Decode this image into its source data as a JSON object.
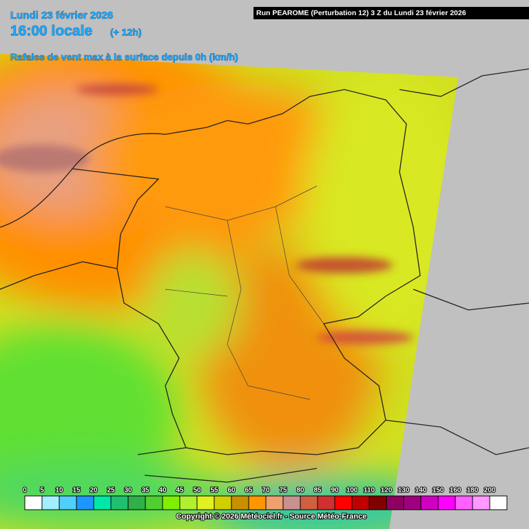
{
  "header": {
    "date": "Lundi 23 février 2026",
    "time": "16:00 locale",
    "lead": "(+ 12h)",
    "parameter": "Rafales de vent max à la surface depuis 0h (km/h)",
    "run": "Run PEAROME (Perturbation 12) 3 Z du Lundi 23 février 2026"
  },
  "legend": {
    "ticks": [
      0,
      5,
      10,
      15,
      20,
      25,
      30,
      35,
      40,
      45,
      50,
      55,
      60,
      65,
      70,
      75,
      80,
      85,
      90,
      100,
      110,
      120,
      130,
      140,
      150,
      160,
      180,
      200
    ],
    "colors": [
      "#ffffff",
      "#a0f0ff",
      "#50d0f8",
      "#1e96ff",
      "#00e8a8",
      "#20c070",
      "#30b048",
      "#50d030",
      "#80f000",
      "#b0f030",
      "#e0f020",
      "#d0d000",
      "#c89000",
      "#ff9600",
      "#f0a070",
      "#c89090",
      "#d06040",
      "#d03030",
      "#ff0000",
      "#c00000",
      "#800000",
      "#900060",
      "#a00080",
      "#d000c0",
      "#ff00ff",
      "#ff60ff",
      "#ff98ff",
      "#ffffff"
    ]
  },
  "copyright": "Copyright © 2026 Météociel.fr - Source Météo-France"
}
